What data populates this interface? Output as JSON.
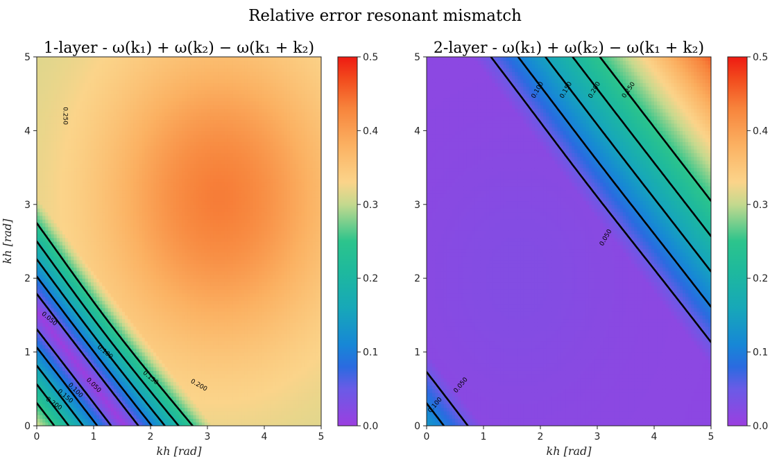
{
  "title": "Relative error resonant mismatch",
  "chart_data": [
    {
      "type": "heatmap",
      "title": "1-layer - ω(k₁) + ω(k₂) − ω(k₁ + k₂)",
      "xlabel": "kh [rad]",
      "ylabel": "kh [rad]",
      "xlim": [
        0,
        5
      ],
      "ylim": [
        0,
        5
      ],
      "xticks": [
        "0",
        "1",
        "2",
        "3",
        "4",
        "5"
      ],
      "yticks": [
        "0",
        "1",
        "2",
        "3",
        "4",
        "5"
      ],
      "colorbar": {
        "range": [
          0.0,
          0.5
        ],
        "ticks": [
          "0.0",
          "0.1",
          "0.2",
          "0.3",
          "0.4",
          "0.5"
        ]
      },
      "contour_levels": [
        0.05,
        0.1,
        0.15,
        0.2,
        0.25
      ],
      "contour_labels": [
        {
          "text": "0.250",
          "x": 0.5,
          "y": 4.2,
          "rot": 90
        },
        {
          "text": "0.050",
          "x": 0.22,
          "y": 1.45,
          "rot": 40
        },
        {
          "text": "0.100",
          "x": 1.2,
          "y": 1.0,
          "rot": 40
        },
        {
          "text": "0.150",
          "x": 2.0,
          "y": 0.65,
          "rot": 40
        },
        {
          "text": "0.200",
          "x": 2.85,
          "y": 0.55,
          "rot": 30
        },
        {
          "text": "0.050",
          "x": 1.0,
          "y": 0.55,
          "rot": 45
        },
        {
          "text": "0.100",
          "x": 0.68,
          "y": 0.48,
          "rot": 45
        },
        {
          "text": "0.150",
          "x": 0.5,
          "y": 0.4,
          "rot": 40
        },
        {
          "text": "0.200",
          "x": 0.3,
          "y": 0.3,
          "rot": 35
        }
      ]
    },
    {
      "type": "heatmap",
      "title": "2-layer - ω(k₁) + ω(k₂) − ω(k₁ + k₂)",
      "xlabel": "kh [rad]",
      "ylabel": "",
      "xlim": [
        0,
        5
      ],
      "ylim": [
        0,
        5
      ],
      "xticks": [
        "0",
        "1",
        "2",
        "3",
        "4",
        "5"
      ],
      "yticks": [
        "0",
        "1",
        "2",
        "3",
        "4",
        "5"
      ],
      "colorbar": {
        "range": [
          0.0,
          0.5
        ],
        "ticks": [
          "0.0",
          "0.1",
          "0.2",
          "0.3",
          "0.4",
          "0.5"
        ]
      },
      "contour_levels": [
        0.05,
        0.1,
        0.15,
        0.2,
        0.25
      ],
      "contour_labels": [
        {
          "text": "0.100",
          "x": 1.95,
          "y": 4.55,
          "rot": -60
        },
        {
          "text": "0.150",
          "x": 2.45,
          "y": 4.55,
          "rot": -60
        },
        {
          "text": "0.200",
          "x": 2.95,
          "y": 4.55,
          "rot": -60
        },
        {
          "text": "0.250",
          "x": 3.55,
          "y": 4.55,
          "rot": -55
        },
        {
          "text": "0.050",
          "x": 3.15,
          "y": 2.55,
          "rot": -60
        },
        {
          "text": "0.050",
          "x": 0.6,
          "y": 0.55,
          "rot": -50
        },
        {
          "text": "0.100",
          "x": 0.15,
          "y": 0.28,
          "rot": -50
        }
      ]
    }
  ]
}
